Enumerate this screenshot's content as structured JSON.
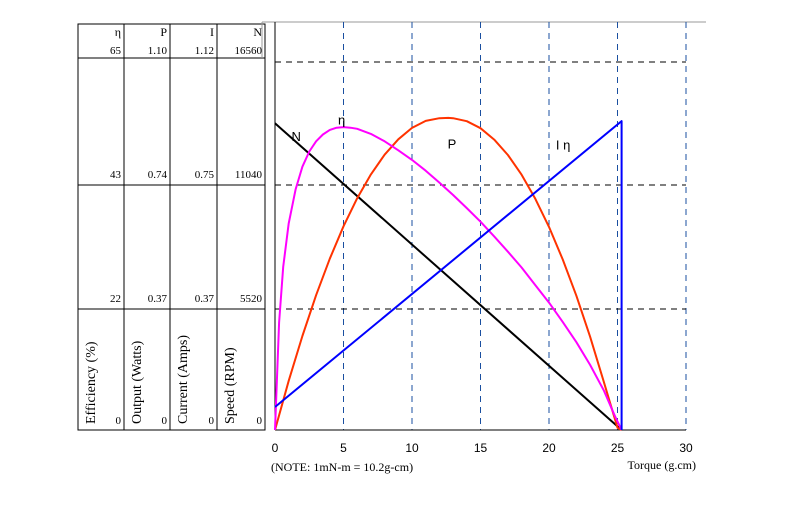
{
  "chart_data": {
    "type": "line",
    "xlabel": "Torque (g.cm)",
    "note": "(NOTE: 1mN-m = 10.2g-cm)",
    "xlim": [
      0,
      30
    ],
    "x_ticks": [
      0,
      5,
      10,
      15,
      20,
      25,
      30
    ],
    "grid": true,
    "axes": [
      {
        "symbol": "η",
        "title": "Efficiency (%)",
        "ticks": [
          "0",
          "22",
          "43",
          "65"
        ]
      },
      {
        "symbol": "P",
        "title": "Output (Watts)",
        "ticks": [
          "0",
          "0.37",
          "0.74",
          "1.10"
        ]
      },
      {
        "symbol": "I",
        "title": "Current (Amps)",
        "ticks": [
          "0",
          "0.37",
          "0.75",
          "1.12"
        ]
      },
      {
        "symbol": "N",
        "title": "Speed (RPM)",
        "ticks": [
          "0",
          "5520",
          "11040",
          "16560"
        ]
      }
    ],
    "series": [
      {
        "name": "N",
        "axis": 3,
        "color": "#000000",
        "x": [
          0,
          25.3
        ],
        "y": [
          13800,
          0
        ]
      },
      {
        "name": "P",
        "axis": 1,
        "color": "#ff3300",
        "x": [
          0,
          1,
          2,
          3,
          4,
          5,
          6,
          7,
          8,
          9,
          10,
          11,
          12,
          12.65,
          13,
          14,
          15,
          16,
          17,
          18,
          19,
          20,
          21,
          22,
          23,
          24,
          25,
          25.3
        ],
        "y": [
          0,
          0.147,
          0.281,
          0.403,
          0.512,
          0.609,
          0.693,
          0.764,
          0.823,
          0.869,
          0.903,
          0.924,
          0.932,
          0.933,
          0.932,
          0.923,
          0.902,
          0.868,
          0.822,
          0.763,
          0.691,
          0.607,
          0.51,
          0.401,
          0.279,
          0.144,
          0.007,
          0
        ]
      },
      {
        "name": "η",
        "axis": 0,
        "color": "#ff00ff",
        "x": [
          0,
          0.3,
          0.6,
          1,
          1.5,
          2,
          2.5,
          3,
          3.5,
          4,
          4.5,
          5,
          5.5,
          6,
          7,
          8,
          9,
          10,
          11,
          12,
          13,
          14,
          15,
          16,
          17,
          18,
          19,
          20,
          21,
          22,
          23,
          24,
          24.8,
          25.3
        ],
        "y": [
          0,
          19.0,
          28.8,
          36.5,
          42.5,
          46.5,
          49.2,
          51.0,
          52.2,
          53.0,
          53.4,
          53.5,
          53.4,
          53.2,
          52.3,
          51.0,
          49.4,
          47.7,
          45.8,
          43.7,
          41.5,
          39.2,
          36.8,
          34.2,
          31.5,
          28.7,
          25.6,
          22.5,
          19.1,
          15.5,
          11.5,
          7.0,
          2.5,
          0
        ]
      },
      {
        "name": "I",
        "axis": 2,
        "color": "#0000ff",
        "x": [
          0,
          25.3,
          25.3
        ],
        "y": [
          0.07,
          0.94,
          0
        ]
      }
    ],
    "annotations": [
      {
        "text": "N",
        "x": 1.2,
        "y_frac": 0.785,
        "color": "#000000"
      },
      {
        "text": "η",
        "x": 4.6,
        "y_frac": 0.83,
        "color": "#000000"
      },
      {
        "text": "P",
        "x": 12.6,
        "y_frac": 0.765,
        "color": "#000000"
      },
      {
        "text": "I η",
        "x": 20.5,
        "y_frac": 0.762,
        "color": "#000000"
      }
    ]
  }
}
